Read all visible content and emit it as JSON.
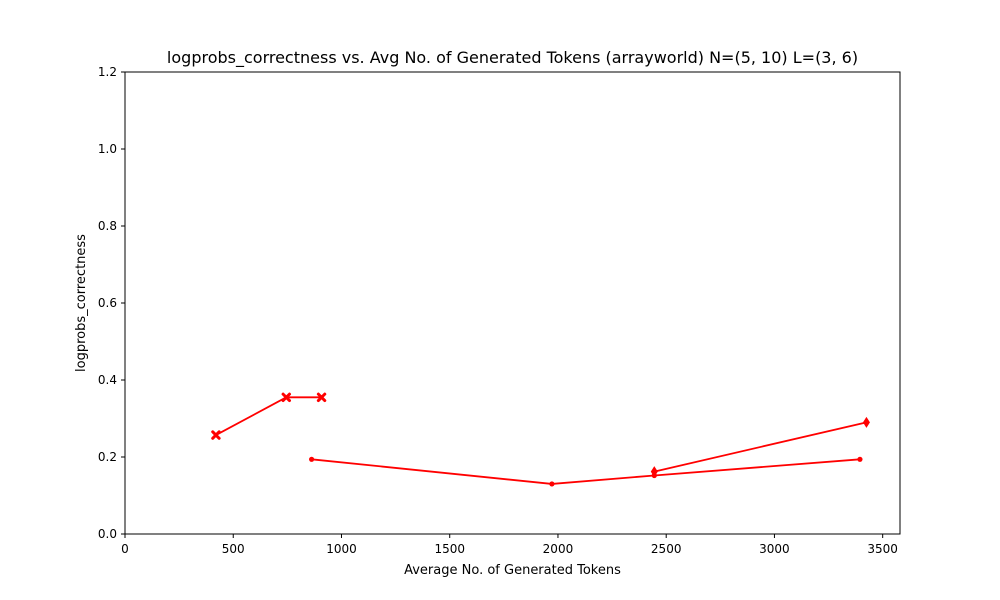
{
  "chart_data": {
    "type": "line",
    "title": "logprobs_correctness vs. Avg No. of Generated Tokens (arrayworld) N=(5, 10) L=(3, 6)",
    "xlabel": "Average No. of Generated Tokens",
    "ylabel": "logprobs_correctness",
    "xlim": [
      0,
      3580
    ],
    "ylim": [
      0,
      1.2
    ],
    "xticks": [
      0,
      500,
      1000,
      1500,
      2000,
      2500,
      3000,
      3500
    ],
    "yticks": [
      0.0,
      0.2,
      0.4,
      0.6,
      0.8,
      1.0,
      1.2
    ],
    "ytick_labels": [
      "0.0",
      "0.2",
      "0.4",
      "0.6",
      "0.8",
      "1.0",
      "1.2"
    ],
    "grid": false,
    "series": [
      {
        "color": "#ff0000",
        "marker": "x",
        "x": [
          420,
          745,
          908
        ],
        "y": [
          0.257,
          0.355,
          0.355
        ]
      },
      {
        "color": "#ff0000",
        "marker": "dot",
        "x": [
          862,
          1972,
          2445,
          3395
        ],
        "y": [
          0.194,
          0.13,
          0.152,
          0.194
        ]
      },
      {
        "color": "#ff0000",
        "marker": "diamond",
        "x": [
          2445,
          3425
        ],
        "y": [
          0.162,
          0.29
        ]
      }
    ]
  }
}
